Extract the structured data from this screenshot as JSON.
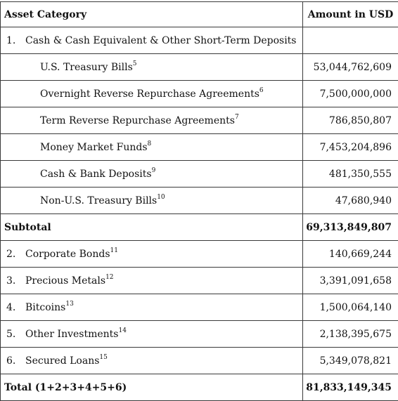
{
  "header": {
    "category": "Asset Category",
    "amount": "Amount in USD"
  },
  "rows": [
    {
      "num": "1.",
      "label": "Cash & Cash Equivalent & Other Short-Term Deposits",
      "note": "",
      "amount": ""
    },
    {
      "label": "U.S. Treasury Bills",
      "note": "5",
      "amount": "53,044,762,609"
    },
    {
      "label": "Overnight Reverse Repurchase Agreements",
      "note": "6",
      "amount": "7,500,000,000"
    },
    {
      "label": "Term Reverse Repurchase Agreements",
      "note": "7",
      "amount": "786,850,807"
    },
    {
      "label": "Money Market Funds",
      "note": "8",
      "amount": "7,453,204,896"
    },
    {
      "label": "Cash & Bank Deposits",
      "note": "9",
      "amount": "481,350,555"
    },
    {
      "label": "Non-U.S. Treasury Bills",
      "note": "10",
      "amount": "47,680,940"
    },
    {
      "label": "Subtotal",
      "amount": "69,313,849,807"
    },
    {
      "num": "2.",
      "label": "Corporate Bonds",
      "note": "11",
      "amount": "140,669,244"
    },
    {
      "num": "3.",
      "label": "Precious Metals",
      "note": "12",
      "amount": "3,391,091,658"
    },
    {
      "num": "4.",
      "label": "Bitcoins",
      "note": "13",
      "amount": "1,500,064,140"
    },
    {
      "num": "5.",
      "label": "Other Investments",
      "note": "14",
      "amount": "2,138,395,675"
    },
    {
      "num": "6.",
      "label": "Secured Loans",
      "note": "15",
      "amount": "5,349,078,821"
    },
    {
      "label": "Total (1+2+3+4+5+6)",
      "amount": "81,833,149,345"
    }
  ]
}
